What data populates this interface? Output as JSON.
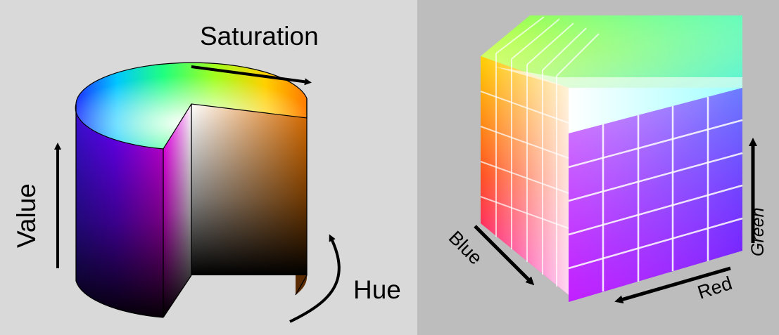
{
  "hsv": {
    "saturation_label": "Saturation",
    "value_label": "Value",
    "hue_label": "Hue"
  },
  "rgb": {
    "blue_label": "Blue",
    "red_label": "Red",
    "green_label": "Green"
  },
  "colors": {
    "left_background": "#d9d9d9",
    "right_background": "#bdbdbd",
    "arrow": "#000000"
  }
}
